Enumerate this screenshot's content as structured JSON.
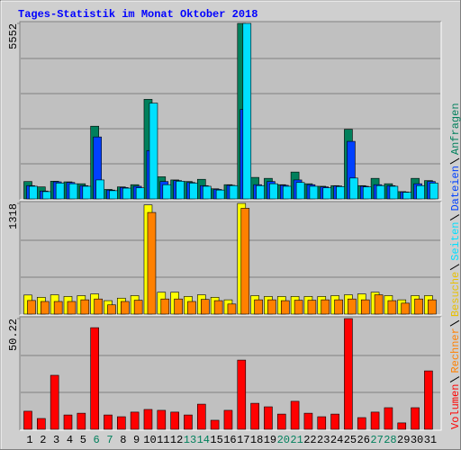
{
  "chart_data": [
    {
      "type": "bar",
      "title": "Tages-Statistik im Monat Oktober 2018",
      "title_color": "#0000ff",
      "ylim": [
        0,
        5552
      ],
      "yticks": [
        5552
      ],
      "grid": true,
      "series": [
        {
          "name": "Anfragen",
          "color": "#00805c",
          "values": [
            550,
            380,
            560,
            540,
            480,
            2300,
            300,
            380,
            450,
            3150,
            700,
            600,
            550,
            620,
            320,
            450,
            5552,
            680,
            650,
            450,
            850,
            480,
            400,
            420,
            2200,
            420,
            650,
            480,
            230,
            650,
            580
          ]
        },
        {
          "name": "Dateien",
          "color": "#0040ff",
          "values": [
            420,
            250,
            540,
            520,
            420,
            1960,
            280,
            360,
            400,
            1530,
            550,
            580,
            520,
            420,
            300,
            430,
            2830,
            450,
            550,
            430,
            600,
            450,
            380,
            410,
            1820,
            400,
            450,
            420,
            220,
            480,
            550
          ]
        },
        {
          "name": "Seiten",
          "color": "#00e0ff",
          "values": [
            400,
            230,
            500,
            480,
            400,
            600,
            260,
            340,
            350,
            3030,
            450,
            560,
            500,
            400,
            280,
            420,
            5552,
            420,
            480,
            400,
            520,
            400,
            350,
            390,
            660,
            380,
            420,
            400,
            210,
            420,
            500
          ]
        }
      ]
    },
    {
      "type": "bar",
      "ylim": [
        0,
        1318
      ],
      "yticks": [
        1318
      ],
      "grid": true,
      "series": [
        {
          "name": "Besuche",
          "color": "#ffff00",
          "text_color": "#e8c000",
          "values": [
            227,
            200,
            230,
            210,
            220,
            240,
            160,
            190,
            220,
            1300,
            260,
            260,
            210,
            230,
            200,
            170,
            1318,
            220,
            210,
            210,
            210,
            210,
            210,
            220,
            230,
            240,
            260,
            220,
            170,
            220,
            220
          ]
        },
        {
          "name": "Rechner",
          "color": "#ff8000",
          "values": [
            162,
            150,
            150,
            150,
            170,
            180,
            110,
            150,
            165,
            1210,
            180,
            180,
            150,
            175,
            160,
            120,
            1260,
            170,
            170,
            160,
            165,
            165,
            170,
            170,
            180,
            170,
            230,
            160,
            130,
            180,
            170
          ]
        }
      ]
    },
    {
      "type": "bar",
      "ylim": [
        0,
        50.22
      ],
      "yticks": [
        50.22
      ],
      "grid": true,
      "series": [
        {
          "name": "Volumen",
          "color": "#ff0000",
          "values": [
            8.2,
            4.9,
            24.5,
            6.5,
            7.3,
            46.1,
            6.5,
            5.7,
            7.8,
            9.0,
            8.6,
            7.8,
            6.5,
            11.4,
            4.1,
            8.6,
            31.4,
            11.8,
            10.2,
            6.9,
            12.7,
            7.3,
            5.7,
            6.9,
            50.22,
            5.3,
            7.8,
            9.8,
            2.9,
            9.8,
            26.5
          ]
        }
      ],
      "categories": [
        "1",
        "2",
        "3",
        "4",
        "5",
        "6",
        "7",
        "8",
        "9",
        "10",
        "11",
        "12",
        "13",
        "14",
        "15",
        "16",
        "17",
        "18",
        "19",
        "20",
        "21",
        "22",
        "23",
        "24",
        "25",
        "26",
        "27",
        "28",
        "29",
        "30",
        "31"
      ],
      "category_colors": [
        "#000000",
        "#000000",
        "#000000",
        "#000000",
        "#000000",
        "#00805c",
        "#00805c",
        "#000000",
        "#000000",
        "#000000",
        "#000000",
        "#000000",
        "#00805c",
        "#00805c",
        "#000000",
        "#000000",
        "#000000",
        "#000000",
        "#000000",
        "#00805c",
        "#00805c",
        "#000000",
        "#000000",
        "#000000",
        "#000000",
        "#000000",
        "#00805c",
        "#00805c",
        "#000000",
        "#000000",
        "#000000"
      ]
    }
  ]
}
